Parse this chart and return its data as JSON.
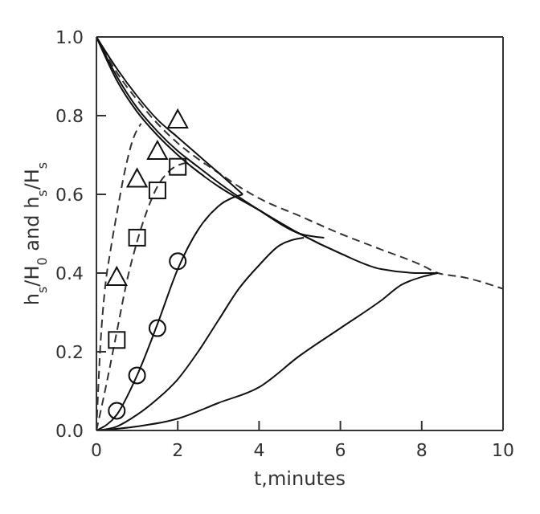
{
  "chart_data": {
    "type": "line",
    "xlabel": "t,minutes",
    "ylabel": "h$_{s}$/H$_{0}$ and h$_{s}$/H$_{s}$",
    "xlim": [
      0,
      10
    ],
    "ylim": [
      0,
      1
    ],
    "xticks": [
      0,
      2,
      4,
      6,
      8,
      10
    ],
    "yticks": [
      {
        "value": 0,
        "label": "0.0"
      },
      {
        "value": 0.2,
        "label": "0.2"
      },
      {
        "value": 0.4,
        "label": "0.4"
      },
      {
        "value": 0.6,
        "label": "0.6"
      },
      {
        "value": 0.8,
        "label": "0.8"
      },
      {
        "value": 1,
        "label": "1.0"
      }
    ],
    "grid": false,
    "legend": false,
    "series": [
      {
        "line_style": "dashed",
        "color": "#333333",
        "x": [
          0,
          0.5,
          1,
          1.5,
          2,
          2.5,
          3,
          3.5,
          4,
          5,
          6,
          7,
          8,
          8.4,
          9,
          10
        ],
        "values": [
          1,
          0.91,
          0.84,
          0.78,
          0.73,
          0.69,
          0.655,
          0.62,
          0.59,
          0.545,
          0.5,
          0.46,
          0.42,
          0.4,
          0.39,
          0.36
        ]
      },
      {
        "type": "line",
        "line_style": "solid",
        "color": "#111111",
        "x": [
          0,
          0.5,
          1,
          1.5,
          2,
          2.5,
          3,
          3.6
        ],
        "values": [
          1,
          0.92,
          0.85,
          0.79,
          0.745,
          0.7,
          0.655,
          0.6
        ]
      },
      {
        "type": "line",
        "line_style": "solid",
        "color": "#111111",
        "x": [
          0,
          0.5,
          1,
          1.5,
          2,
          2.5,
          3,
          4,
          5,
          5.6
        ],
        "values": [
          1,
          0.9,
          0.82,
          0.76,
          0.71,
          0.67,
          0.63,
          0.56,
          0.5,
          0.49
        ]
      },
      {
        "type": "line",
        "line_style": "solid",
        "color": "#111111",
        "x": [
          0,
          0.5,
          1,
          1.5,
          2,
          3,
          4,
          5,
          6,
          7,
          8,
          8.4
        ],
        "values": [
          1,
          0.89,
          0.81,
          0.75,
          0.7,
          0.62,
          0.56,
          0.5,
          0.45,
          0.41,
          0.4,
          0.4
        ]
      },
      {
        "type": "line",
        "line_style": "dashed",
        "color": "#333333",
        "x": [
          0,
          0.1,
          0.2,
          0.35,
          0.5,
          0.7,
          0.9,
          1.1
        ],
        "values": [
          0,
          0.22,
          0.35,
          0.46,
          0.55,
          0.66,
          0.74,
          0.78
        ]
      },
      {
        "type": "line",
        "line_style": "dashed",
        "color": "#333333",
        "x": [
          0,
          0.25,
          0.5,
          0.75,
          1,
          1.25,
          1.5,
          1.8,
          2.2
        ],
        "values": [
          0,
          0.12,
          0.25,
          0.38,
          0.48,
          0.56,
          0.62,
          0.66,
          0.68
        ]
      },
      {
        "type": "line",
        "line_style": "solid",
        "color": "#111111",
        "x": [
          0,
          0.5,
          1,
          1.5,
          2,
          2.5,
          3,
          3.6
        ],
        "values": [
          0,
          0.04,
          0.14,
          0.27,
          0.41,
          0.51,
          0.57,
          0.6
        ]
      },
      {
        "type": "line",
        "line_style": "solid",
        "color": "#111111",
        "x": [
          0,
          0.5,
          1,
          1.5,
          2,
          2.5,
          3,
          3.5,
          4,
          4.5,
          5.1
        ],
        "values": [
          0,
          0.01,
          0.04,
          0.08,
          0.13,
          0.2,
          0.28,
          0.36,
          0.42,
          0.47,
          0.49
        ]
      },
      {
        "type": "line",
        "line_style": "solid",
        "color": "#111111",
        "x": [
          0,
          1,
          2,
          3,
          4,
          5,
          6,
          7,
          7.5,
          8,
          8.4
        ],
        "values": [
          0,
          0.01,
          0.03,
          0.07,
          0.11,
          0.19,
          0.26,
          0.33,
          0.37,
          0.39,
          0.4
        ]
      },
      {
        "type": "scatter",
        "marker": "triangle",
        "color": "#111111",
        "x": [
          0.5,
          1,
          1.5,
          2
        ],
        "values": [
          0.39,
          0.64,
          0.71,
          0.79
        ]
      },
      {
        "type": "scatter",
        "marker": "square",
        "color": "#111111",
        "x": [
          0.5,
          1,
          1.5,
          2
        ],
        "values": [
          0.23,
          0.49,
          0.61,
          0.67
        ]
      },
      {
        "type": "scatter",
        "marker": "circle",
        "color": "#111111",
        "x": [
          0.5,
          1,
          1.5,
          2
        ],
        "values": [
          0.05,
          0.14,
          0.26,
          0.43
        ]
      }
    ]
  }
}
